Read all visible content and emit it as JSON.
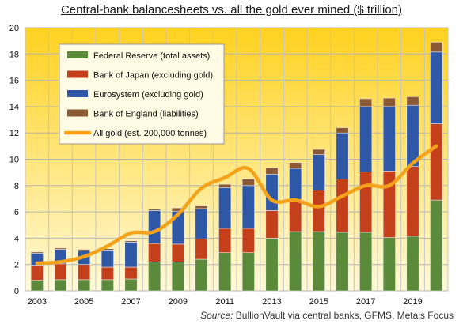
{
  "title": "Central-bank balancesheets vs. all the gold ever mined ($ trillion)",
  "source_label": "Source:",
  "source_text": "BullionVault via central banks, GFMS, Metals Focus",
  "colors": {
    "fed": "#5b8a3a",
    "boj": "#c4401b",
    "euro": "#2e58a6",
    "boe": "#8b5a34",
    "gold": "#f5a21b",
    "plot_top": "#ffd21f",
    "plot_bottom": "#fff9d8"
  },
  "chart_data": {
    "type": "bar",
    "stacked": true,
    "x": [
      2003,
      2004,
      2005,
      2006,
      2007,
      2008,
      2009,
      2010,
      2011,
      2012,
      2013,
      2014,
      2015,
      2016,
      2017,
      2018,
      2019,
      2020
    ],
    "x_tick_labels": [
      "2003",
      "2005",
      "2007",
      "2009",
      "2011",
      "2013",
      "2015",
      "2017",
      "2019"
    ],
    "ylim": [
      0,
      20
    ],
    "y_ticks": [
      0,
      2,
      4,
      6,
      8,
      10,
      12,
      14,
      16,
      18,
      20
    ],
    "grid": true,
    "legend_position": "top-left",
    "series": [
      {
        "name": "Federal Reserve (total assets)",
        "type": "bar",
        "color_key": "fed",
        "values": [
          0.8,
          0.85,
          0.85,
          0.85,
          0.9,
          2.2,
          2.2,
          2.4,
          2.9,
          2.9,
          4.0,
          4.5,
          4.5,
          4.45,
          4.45,
          4.05,
          4.15,
          6.9
        ]
      },
      {
        "name": "Bank of Japan (excluding gold)",
        "type": "bar",
        "color_key": "boj",
        "values": [
          1.15,
          1.2,
          1.15,
          0.95,
          0.9,
          1.4,
          1.35,
          1.55,
          1.85,
          1.85,
          2.1,
          2.45,
          3.15,
          4.05,
          4.6,
          5.05,
          5.3,
          5.8
        ]
      },
      {
        "name": "Eurosystem (excluding gold)",
        "type": "bar",
        "color_key": "euro",
        "values": [
          0.9,
          1.1,
          1.05,
          1.3,
          1.9,
          2.5,
          2.5,
          2.3,
          3.1,
          3.25,
          2.75,
          2.35,
          2.7,
          3.5,
          4.95,
          4.9,
          4.65,
          5.45
        ]
      },
      {
        "name": "Bank of England (liabilities)",
        "type": "bar",
        "color_key": "boe",
        "values": [
          0.1,
          0.1,
          0.1,
          0.1,
          0.1,
          0.1,
          0.25,
          0.2,
          0.25,
          0.5,
          0.5,
          0.45,
          0.4,
          0.4,
          0.6,
          0.65,
          0.65,
          0.75
        ]
      },
      {
        "name": "All gold (est. 200,000 tonnes)",
        "type": "line",
        "color_key": "gold",
        "values": [
          2.1,
          2.2,
          2.6,
          3.4,
          4.4,
          4.5,
          5.8,
          7.8,
          8.6,
          9.3,
          6.9,
          6.9,
          6.4,
          7.2,
          8.0,
          8.0,
          9.7,
          11.0
        ]
      }
    ]
  }
}
